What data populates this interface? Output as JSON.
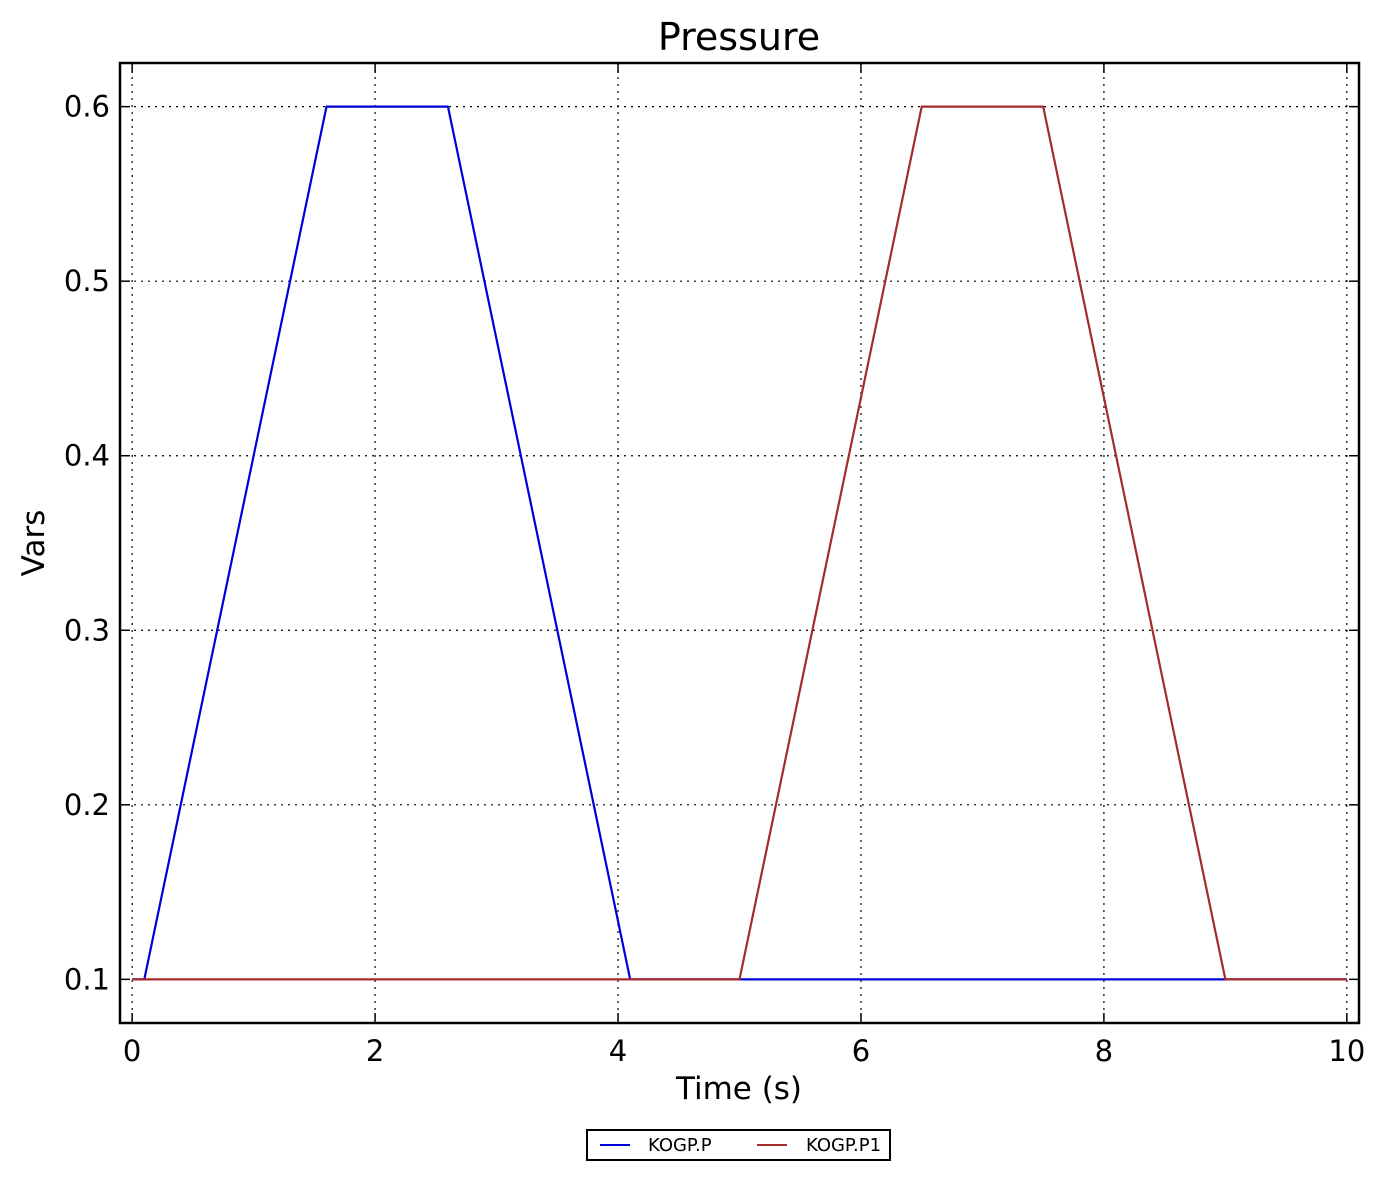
{
  "chart_data": {
    "type": "line",
    "title": "Pressure",
    "xlabel": "Time (s)",
    "ylabel": "Vars",
    "xlim": [
      -0.1,
      10.1
    ],
    "ylim": [
      0.075,
      0.625
    ],
    "xticks": [
      0,
      2,
      4,
      6,
      8,
      10
    ],
    "xtick_labels": [
      "0",
      "2",
      "4",
      "6",
      "8",
      "10"
    ],
    "yticks": [
      0.1,
      0.2,
      0.3,
      0.4,
      0.5,
      0.6
    ],
    "ytick_labels": [
      "0.1",
      "0.2",
      "0.3",
      "0.4",
      "0.5",
      "0.6"
    ],
    "grid": true,
    "legend_position": "bottom-center-outside",
    "series": [
      {
        "name": "KOGP.P",
        "color": "#0000dd",
        "x": [
          0,
          0.1,
          1.6,
          2.6,
          4.1,
          10
        ],
        "y": [
          0.1,
          0.1,
          0.6,
          0.6,
          0.1,
          0.1
        ]
      },
      {
        "name": "KOGP.P1",
        "color": "#a52a2a",
        "x": [
          0,
          5.0,
          6.5,
          7.5,
          9.0,
          10
        ],
        "y": [
          0.1,
          0.1,
          0.6,
          0.6,
          0.1,
          0.1
        ]
      }
    ]
  }
}
